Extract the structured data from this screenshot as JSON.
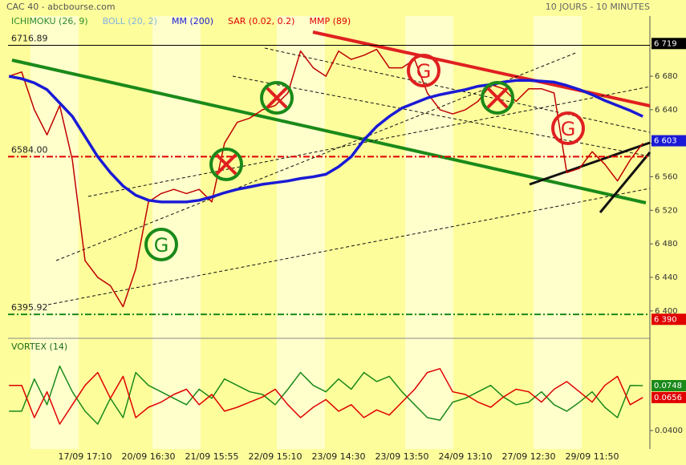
{
  "chart_data": [
    {
      "type": "line",
      "title": "CAC 40 - abcbourse.com",
      "subtitle": "10 JOURS - 10 MINUTES",
      "indicators": [
        {
          "name": "ICHIMOKU (26, 9)",
          "color": "#2e8b2e"
        },
        {
          "name": "BOLL (20, 2)",
          "color": "#7fb2e0"
        },
        {
          "name": "SAR (0.02, 0.2)",
          "color": "#e00000"
        },
        {
          "name": "MMP (89)",
          "color": "#e00000"
        }
      ],
      "signal_label": "G",
      "categories": [
        null,
        null,
        null,
        null,
        null,
        null,
        "17/09 17:10",
        null,
        null,
        null,
        null,
        "20/09 16:30",
        null,
        null,
        null,
        null,
        "21/09 15:55",
        null,
        null,
        null,
        null,
        "22/09 15:10",
        null,
        null,
        null,
        null,
        "23/09 14:30",
        null,
        null,
        null,
        null,
        "23/09 13:50",
        null,
        null,
        null,
        null,
        "24/09 13:10",
        null,
        null,
        null,
        null,
        "27/09 12:30",
        null,
        null,
        null,
        null,
        "29/09 11:50",
        null,
        null,
        null,
        null
      ],
      "series": [
        {
          "color": "#c00000",
          "values": [
            6680,
            6685,
            6640,
            6610,
            6645,
            6580,
            6460,
            6440,
            6430,
            6405,
            6450,
            6530,
            6540,
            6545,
            6540,
            6545,
            6530,
            6600,
            6625,
            6630,
            6640,
            6645,
            6660,
            6710,
            6690,
            6680,
            6710,
            6700,
            6705,
            6712,
            6690,
            6690,
            6700,
            6660,
            6640,
            6635,
            6640,
            6650,
            6670,
            6665,
            6650,
            6665,
            6665,
            6660,
            6565,
            6570,
            6590,
            6575,
            6555,
            6580,
            6600
          ]
        },
        {
          "name": "MM (200)",
          "color": "#1a1ad6",
          "values": [
            6680,
            6677,
            6672,
            6664,
            6648,
            6632,
            6608,
            6584,
            6565,
            6549,
            6538,
            6532,
            6530,
            6530,
            6530,
            6532,
            6536,
            6541,
            6545,
            6548,
            6551,
            6553,
            6555,
            6558,
            6560,
            6563,
            6572,
            6584,
            6604,
            6620,
            6632,
            6642,
            6648,
            6654,
            6658,
            6661,
            6664,
            6668,
            6670,
            6673,
            6675,
            6675,
            6674,
            6673,
            6669,
            6664,
            6658,
            6651,
            6645,
            6639,
            6632
          ]
        }
      ],
      "levels": [
        {
          "value": 6716.89,
          "color": "#000000"
        },
        {
          "value": {
            "value": 6584,
            "label": "6584.00"
          },
          "color": "#e00000"
        },
        {
          "value": 6395.92,
          "color": "#1a8a1a"
        }
      ],
      "last_values": [
        {
          "value": {
            "value": 6719,
            "label": "6 719"
          },
          "color": "#000000"
        },
        {
          "value": {
            "value": 6603,
            "label": "6 603"
          },
          "color": "#1a1ad6"
        },
        {
          "value": {
            "value": 6390,
            "label": "6 390"
          },
          "color": "#e00000"
        }
      ],
      "ylim": [
        6374,
        6725
      ],
      "yticks": [
        {
          "value": 6400,
          "label": "6 400"
        },
        {
          "value": 6440,
          "label": "6 440"
        },
        {
          "value": 6480,
          "label": "6 480"
        },
        {
          "value": 6520,
          "label": "6 520"
        },
        {
          "value": 6560,
          "label": "6 560"
        },
        {
          "value": 6600,
          "label": "6 600"
        },
        {
          "value": 6640,
          "label": "6 640"
        },
        {
          "value": 6680,
          "label": "6 680"
        }
      ]
    },
    {
      "type": "line",
      "title": "VORTEX (14)",
      "series": [
        {
          "color": "#1a8a1a",
          "values": [
            0.055,
            0.055,
            0.08,
            0.06,
            0.09,
            0.07,
            0.055,
            0.045,
            0.065,
            0.05,
            0.085,
            0.075,
            0.07,
            0.065,
            0.06,
            0.072,
            0.065,
            0.08,
            0.075,
            0.07,
            0.068,
            0.06,
            0.072,
            0.085,
            0.075,
            0.07,
            0.08,
            0.072,
            0.085,
            0.078,
            0.082,
            0.07,
            0.06,
            0.05,
            0.048,
            0.062,
            0.065,
            0.07,
            0.075,
            0.066,
            0.06,
            0.062,
            0.07,
            0.06,
            0.055,
            0.062,
            0.07,
            0.058,
            0.05,
            0.075,
            0.0748
          ]
        },
        {
          "color": "#e00000",
          "values": [
            0.075,
            0.075,
            0.05,
            0.07,
            0.045,
            0.06,
            0.075,
            0.085,
            0.065,
            0.082,
            0.05,
            0.058,
            0.062,
            0.068,
            0.072,
            0.06,
            0.068,
            0.055,
            0.058,
            0.062,
            0.066,
            0.072,
            0.06,
            0.05,
            0.058,
            0.064,
            0.055,
            0.06,
            0.05,
            0.056,
            0.052,
            0.062,
            0.072,
            0.085,
            0.088,
            0.07,
            0.068,
            0.062,
            0.058,
            0.066,
            0.072,
            0.07,
            0.062,
            0.072,
            0.078,
            0.07,
            0.062,
            0.075,
            0.082,
            0.06,
            0.0656
          ]
        }
      ],
      "last_values": [
        {
          "value": 0.0748,
          "color": "#1a8a1a"
        },
        {
          "value": 0.0656,
          "color": "#e00000"
        }
      ],
      "ylim": [
        0.0257,
        0.1003
      ],
      "yticks": [
        {
          "value": 0.04,
          "label": "0.0400"
        }
      ]
    }
  ]
}
